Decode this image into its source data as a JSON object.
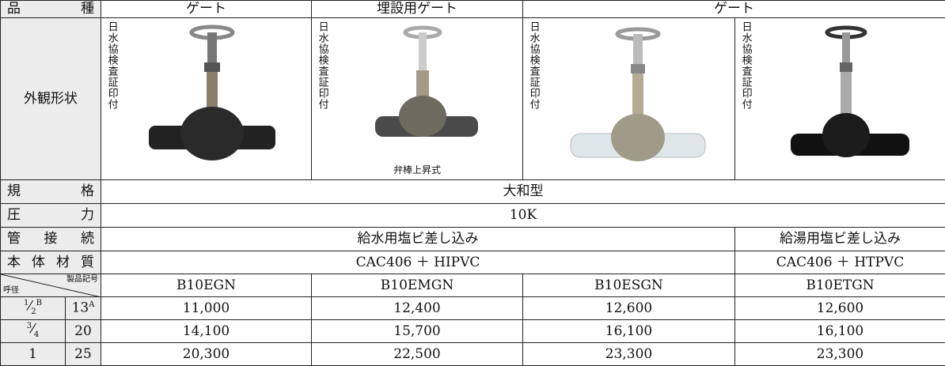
{
  "kind_label": "品種",
  "kinds": [
    "ゲート",
    "埋設用ゲート",
    "ゲート"
  ],
  "appearance_label": "外観形状",
  "stamps": [
    "日水協検査証印付",
    "日水協検査証印付",
    "日水協検査証印付",
    "日水協検査証印付"
  ],
  "caption": "弁棒上昇式",
  "spec_label": "規格",
  "spec": "大和型",
  "pressure_label": "圧力",
  "pressure": "10K",
  "connection_label": "管接続",
  "connections": [
    "給水用塩ビ差し込み",
    "給湯用塩ビ差し込み"
  ],
  "material_label": "本体材質",
  "materials": [
    "CAC406 ＋ HIPVC",
    "CAC406 ＋ HTPVC"
  ],
  "size_label": "呼径",
  "code_label": "製品記号",
  "codes": [
    "B10EGN",
    "B10EMGN",
    "B10ESGN",
    "B10ETGN"
  ],
  "rows": [
    {
      "inch_num": "1",
      "inch_den": "2",
      "inch_unit": "B",
      "mm": "13",
      "mm_unit": "A",
      "prices": [
        "11,000",
        "12,400",
        "12,600",
        "12,600"
      ]
    },
    {
      "inch_num": "3",
      "inch_den": "4",
      "mm": "20",
      "prices": [
        "14,100",
        "15,700",
        "16,100",
        "16,100"
      ]
    },
    {
      "inch": "1",
      "mm": "25",
      "prices": [
        "20,300",
        "22,500",
        "23,300",
        "23,300"
      ]
    }
  ]
}
